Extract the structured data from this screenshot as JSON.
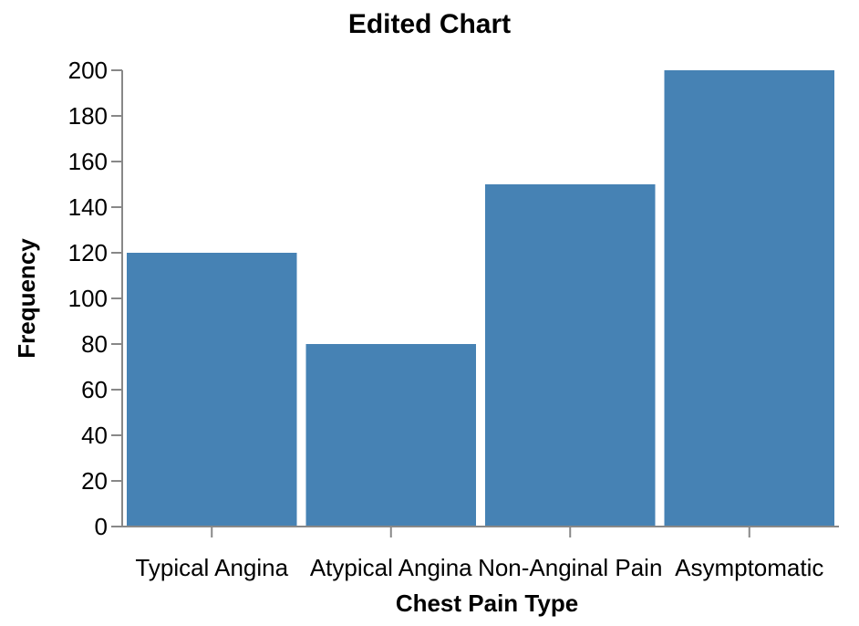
{
  "chart_data": {
    "type": "bar",
    "title": "Edited Chart",
    "xlabel": "Chest Pain Type",
    "ylabel": "Frequency",
    "categories": [
      "Typical Angina",
      "Atypical Angina",
      "Non-Anginal Pain",
      "Asymptomatic"
    ],
    "values": [
      120,
      80,
      150,
      200
    ],
    "ylim": [
      0,
      200
    ],
    "yticks": [
      0,
      20,
      40,
      60,
      80,
      100,
      120,
      140,
      160,
      180,
      200
    ],
    "grid": false,
    "bar_color": "#4682b4"
  }
}
